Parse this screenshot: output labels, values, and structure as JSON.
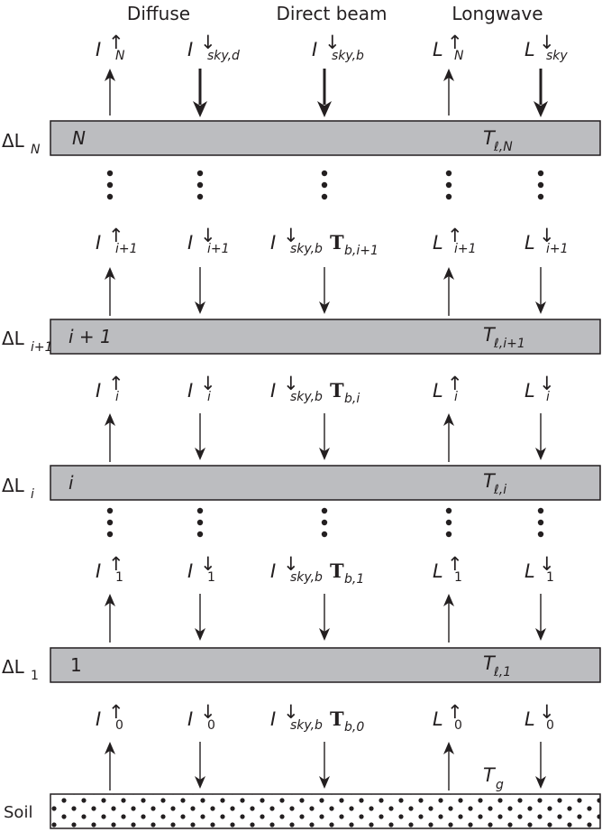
{
  "headers": {
    "diffuse": "Diffuse",
    "direct_beam": "Direct beam",
    "longwave": "Longwave"
  },
  "symbols": {
    "I": "I",
    "L": "L",
    "T": "T",
    "delta": "ΔL",
    "bold_T": "T"
  },
  "subscripts": {
    "N": "N",
    "sky_d": "sky,d",
    "sky_b": "sky,b",
    "sky": "sky",
    "i_plus_1": "i+1",
    "i": "i",
    "one": "1",
    "zero": "0",
    "b_i_plus_1": "b,i+1",
    "b_i": "b,i",
    "b_1": "b,1",
    "b_0": "b,0",
    "l_N": "ℓ,N",
    "l_i_plus_1": "ℓ,i+1",
    "l_i": "ℓ,i",
    "l_1": "ℓ,1",
    "g": "g"
  },
  "layers": {
    "top_label": "N",
    "ip1_label": "i + 1",
    "i_label": "i",
    "one_label": "1"
  },
  "soil_label": "Soil"
}
